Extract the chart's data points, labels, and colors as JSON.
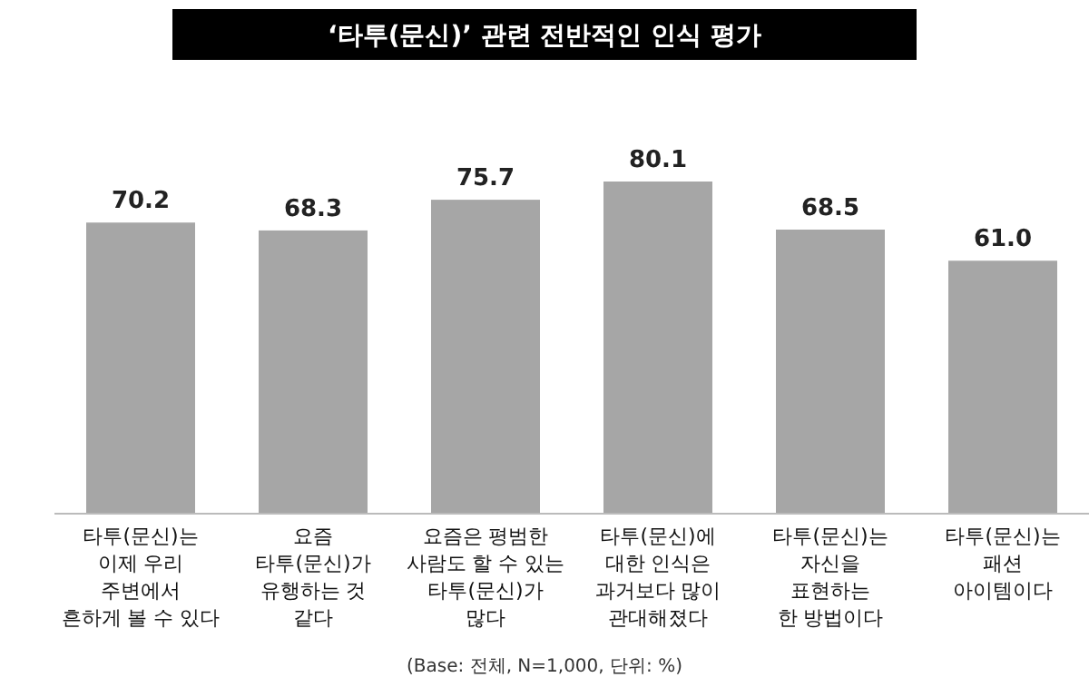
{
  "chart_data": {
    "type": "bar",
    "title": "‘타투(문신)’ 관련 전반적인 인식 평가",
    "categories": [
      "타투(문신)는\n이제 우리\n주변에서\n흔하게 볼 수 있다",
      "요즘\n타투(문신)가\n유행하는 것\n같다",
      "요즘은 평범한\n사람도 할 수 있는\n타투(문신)가\n많다",
      "타투(문신)에\n대한 인식은\n과거보다 많이\n관대해졌다",
      "타투(문신)는\n자신을\n표현하는\n한 방법이다",
      "타투(문신)는\n패션\n아이템이다"
    ],
    "values": [
      70.2,
      68.3,
      75.7,
      80.1,
      68.5,
      61.0
    ],
    "value_labels": [
      "70.2",
      "68.3",
      "75.7",
      "80.1",
      "68.5",
      "61.0"
    ],
    "color": "#a6a6a6",
    "annotations": [
      "(Base: 전체, N=1,000, 단위: %)"
    ]
  }
}
